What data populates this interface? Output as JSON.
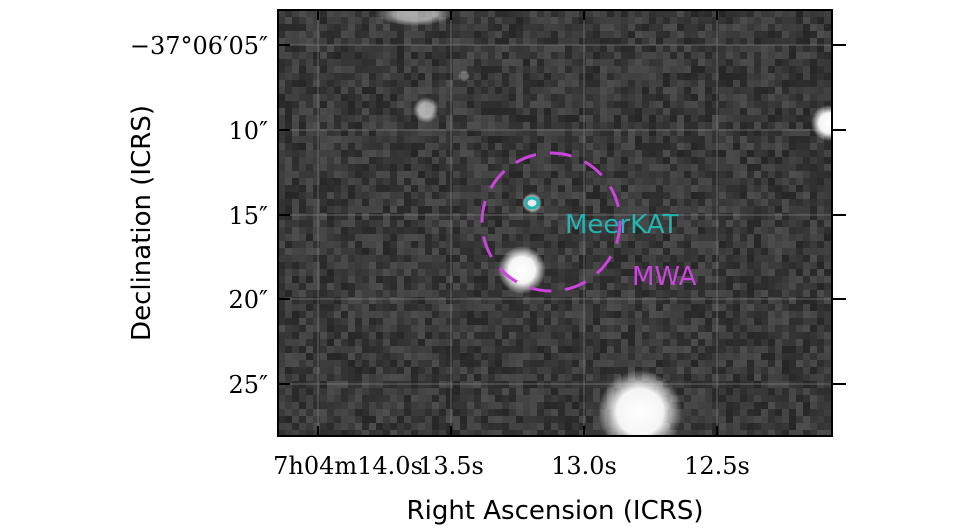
{
  "axes": {
    "x_title": "Right Ascension (ICRS)",
    "y_title": "Declination (ICRS)",
    "x_ticks": [
      {
        "label": "7h04m14.0s"
      },
      {
        "label": "13.5s"
      },
      {
        "label": "13.0s"
      },
      {
        "label": "12.5s"
      }
    ],
    "y_ticks": [
      {
        "label": "−37°06′05″"
      },
      {
        "label": "10″"
      },
      {
        "label": "15″"
      },
      {
        "label": "20″"
      },
      {
        "label": "25″"
      }
    ]
  },
  "markers": {
    "meerkat": {
      "label": "MeerKAT",
      "color": "#22b3b3"
    },
    "mwa": {
      "label": "MWA",
      "color": "#cc44dd"
    }
  },
  "colors": {
    "sky_background": "#3a3a3a",
    "grid": "#8a8a8a"
  }
}
